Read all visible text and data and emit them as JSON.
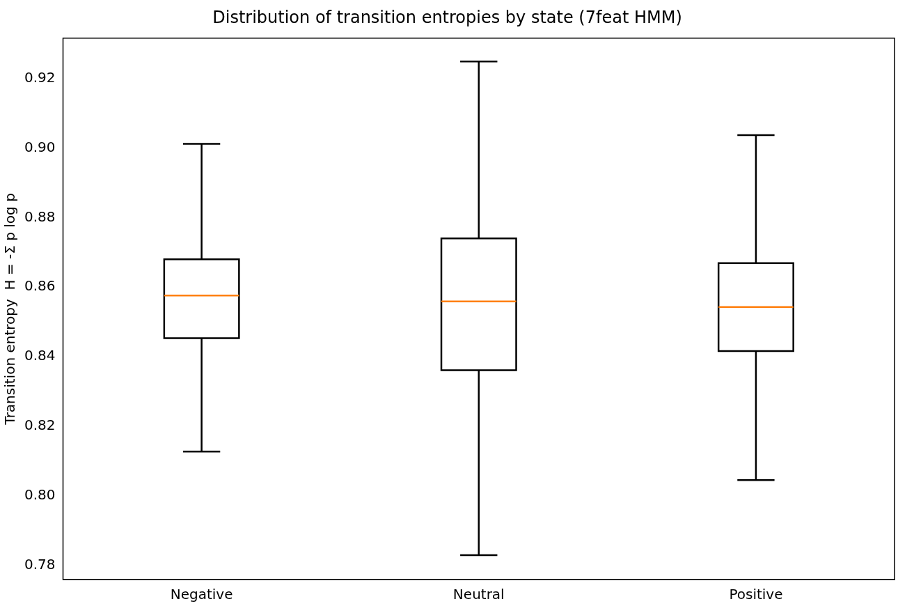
{
  "chart_data": {
    "type": "box",
    "title": "Distribution of transition entropies by state (7feat HMM)",
    "ylabel": "Transition entropy  H = -Σ p log p",
    "categories": [
      "Negative",
      "Neutral",
      "Positive"
    ],
    "boxes": [
      {
        "low": 0.8127,
        "q1": 0.8453,
        "median": 0.8576,
        "q3": 0.868,
        "high": 0.9012
      },
      {
        "low": 0.7829,
        "q1": 0.8361,
        "median": 0.8559,
        "q3": 0.874,
        "high": 0.9249
      },
      {
        "low": 0.8045,
        "q1": 0.8416,
        "median": 0.8543,
        "q3": 0.8669,
        "high": 0.9037
      }
    ],
    "ylim": [
      0.7759,
      0.9316
    ],
    "yticks": [
      0.78,
      {
        "value": 0.8,
        "label": "0.80"
      },
      0.82,
      0.84,
      0.86,
      0.88,
      {
        "value": 0.9,
        "label": "0.90"
      },
      0.92
    ],
    "grid": false
  }
}
